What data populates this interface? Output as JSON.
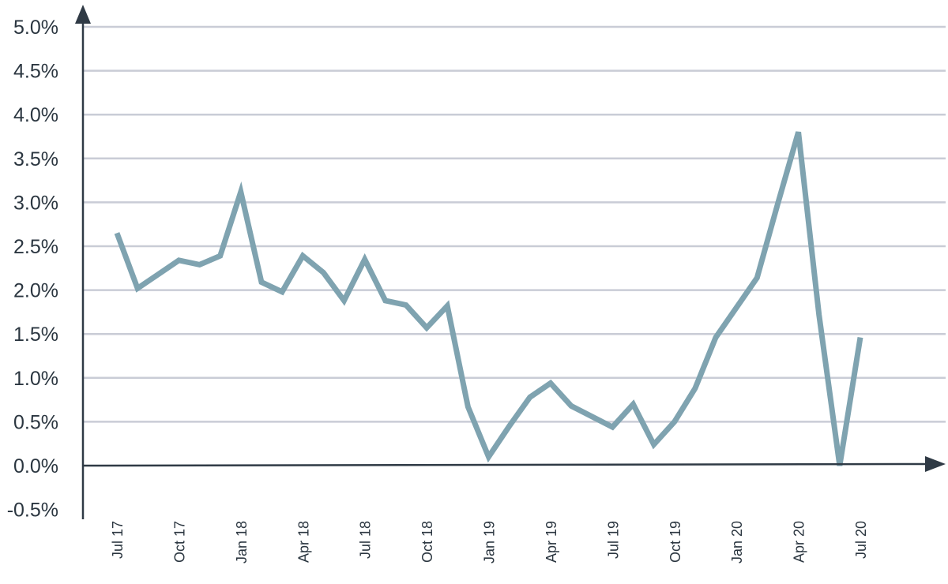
{
  "chart_data": {
    "type": "line",
    "title": "",
    "xlabel": "",
    "ylabel": "",
    "ylim": [
      -0.5,
      5.0
    ],
    "y_ticks": [
      5.0,
      4.5,
      4.0,
      3.5,
      3.0,
      2.5,
      2.0,
      1.5,
      1.0,
      0.5,
      0.0,
      -0.5
    ],
    "y_tick_labels": [
      "5.0%",
      "4.5%",
      "4.0%",
      "3.5%",
      "3.0%",
      "2.5%",
      "2.0%",
      "1.5%",
      "1.0%",
      "0.5%",
      "0.0%",
      "-0.5%"
    ],
    "grid": true,
    "legend": "none",
    "x_tick_labels": [
      "Jul 17",
      "Oct 17",
      "Jan 18",
      "Apr 18",
      "Jul 18",
      "Oct 18",
      "Jan 19",
      "Apr 19",
      "Jul 19",
      "Oct 19",
      "Jan 20",
      "Apr 20",
      "Jul 20"
    ],
    "x": [
      "Jul 17",
      "Aug 17",
      "Sep 17",
      "Oct 17",
      "Nov 17",
      "Dec 17",
      "Jan 18",
      "Feb 18",
      "Mar 18",
      "Apr 18",
      "May 18",
      "Jun 18",
      "Jul 18",
      "Aug 18",
      "Sep 18",
      "Oct 18",
      "Nov 18",
      "Dec 18",
      "Jan 19",
      "Feb 19",
      "Mar 19",
      "Apr 19",
      "May 19",
      "Jun 19",
      "Jul 19",
      "Aug 19",
      "Sep 19",
      "Oct 19",
      "Nov 19",
      "Dec 19",
      "Jan 20",
      "Feb 20",
      "Mar 20",
      "Apr 20",
      "May 20",
      "Jun 20",
      "Jul 20"
    ],
    "series": [
      {
        "color": "#7fa3b0",
        "values": [
          2.65,
          2.02,
          2.18,
          2.34,
          2.29,
          2.39,
          3.12,
          2.09,
          1.98,
          2.39,
          2.2,
          1.88,
          2.35,
          1.88,
          1.83,
          1.57,
          1.82,
          0.67,
          0.1,
          0.45,
          0.78,
          0.94,
          0.68,
          0.56,
          0.44,
          0.7,
          0.24,
          0.5,
          0.88,
          1.46,
          1.8,
          2.14,
          2.98,
          3.8,
          1.72,
          0.0,
          1.46
        ]
      }
    ]
  }
}
